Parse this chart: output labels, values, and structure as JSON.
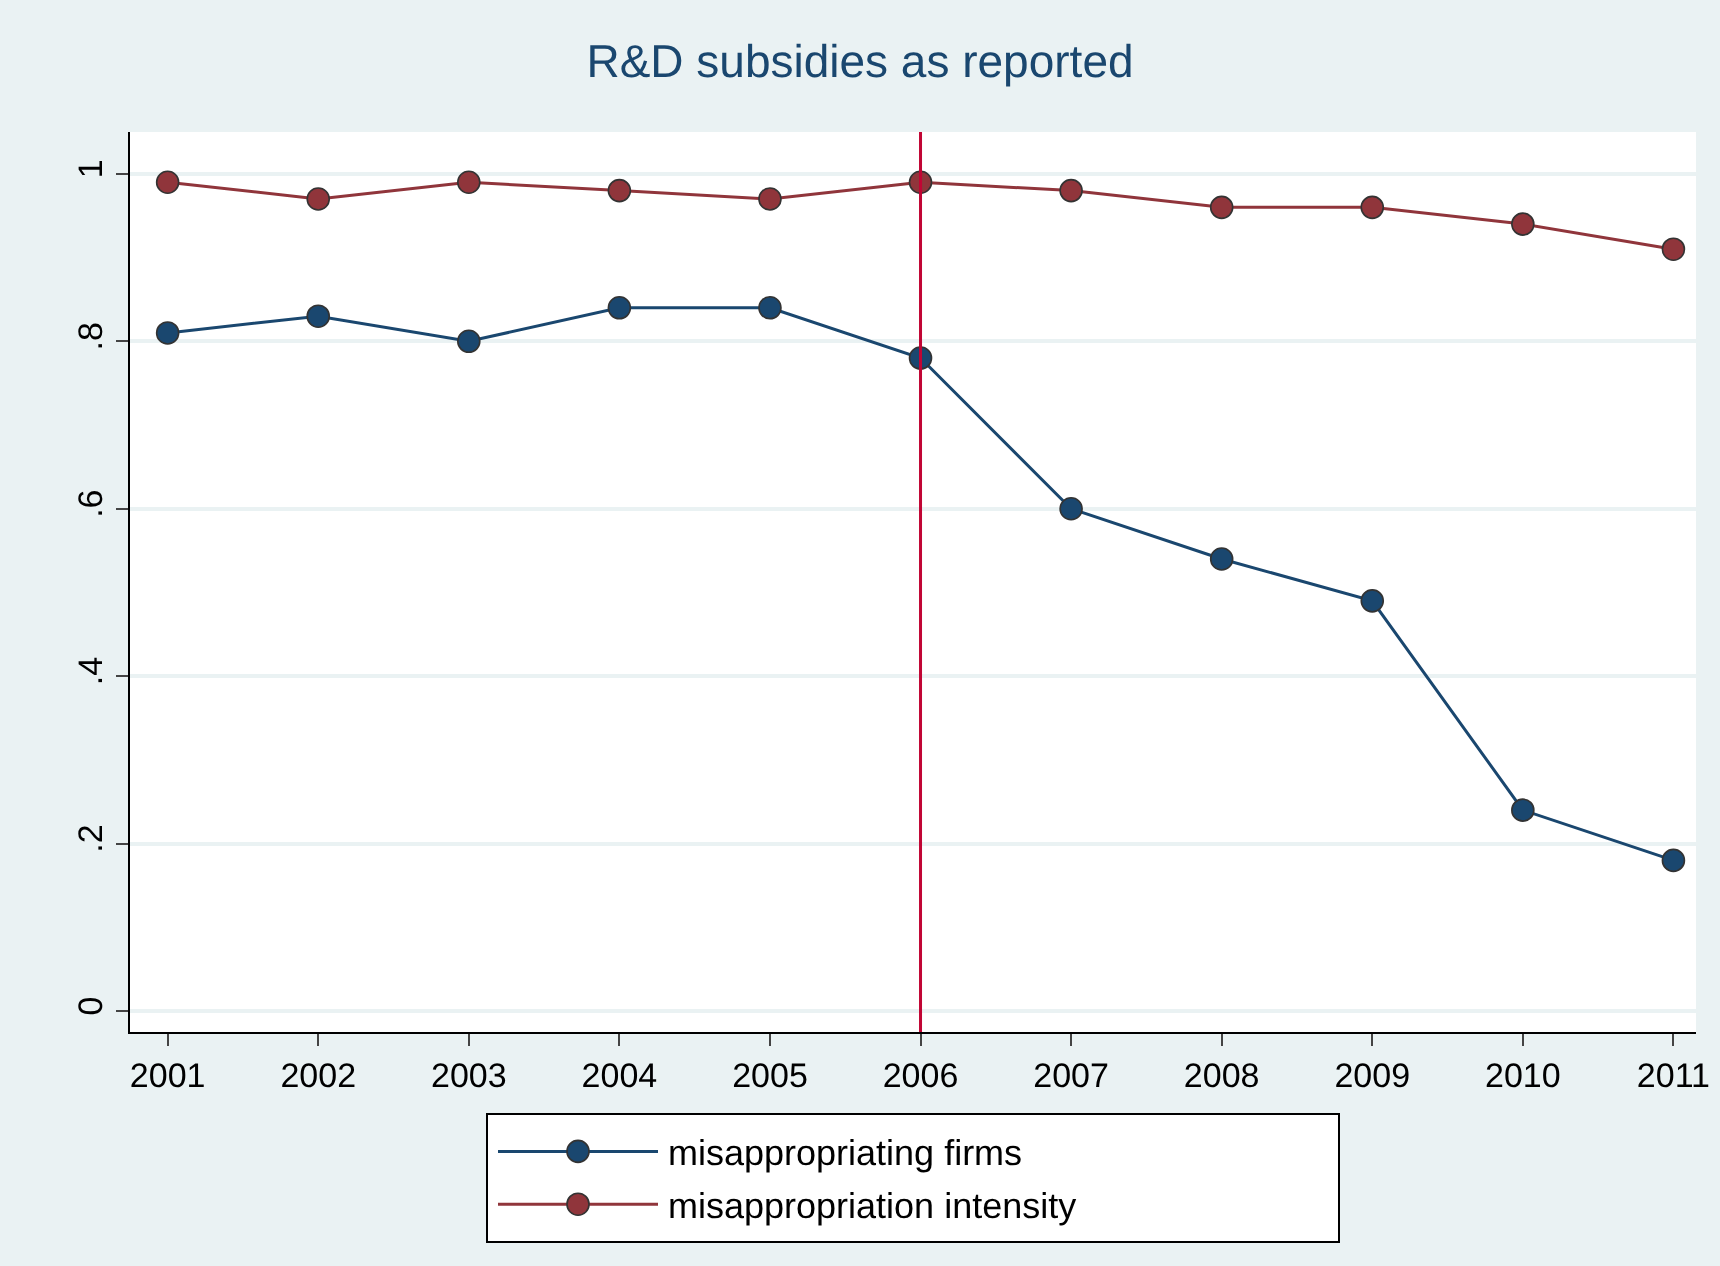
{
  "chart_data": {
    "type": "line",
    "title": "R&D subsidies as reported",
    "x": [
      2001,
      2002,
      2003,
      2004,
      2005,
      2006,
      2007,
      2008,
      2009,
      2010,
      2011
    ],
    "series": [
      {
        "name": "misappropriating firms",
        "color": "#1a476f",
        "values": [
          0.81,
          0.83,
          0.8,
          0.84,
          0.84,
          0.78,
          0.6,
          0.54,
          0.49,
          0.24,
          0.18
        ]
      },
      {
        "name": "misappropriation intensity",
        "color": "#90353b",
        "values": [
          0.99,
          0.97,
          0.99,
          0.98,
          0.97,
          0.99,
          0.98,
          0.96,
          0.96,
          0.94,
          0.91
        ]
      }
    ],
    "xlim": [
      2000.75,
      2011.15
    ],
    "xticks": [
      2001,
      2002,
      2003,
      2004,
      2005,
      2006,
      2007,
      2008,
      2009,
      2010,
      2011
    ],
    "ylim": [
      -0.025,
      1.05
    ],
    "yticks": [
      0,
      {
        "value": 0.2,
        "label": ".2"
      },
      {
        "value": 0.4,
        "label": ".4"
      },
      {
        "value": 0.6,
        "label": ".6"
      },
      {
        "value": 0.8,
        "label": ".8"
      },
      1
    ],
    "ref_lines": [
      {
        "axis": "x",
        "value": 2006,
        "color": "#c10534"
      }
    ],
    "grid": "y",
    "legend": "bottom",
    "marker": "circle",
    "line_style": "solid"
  }
}
